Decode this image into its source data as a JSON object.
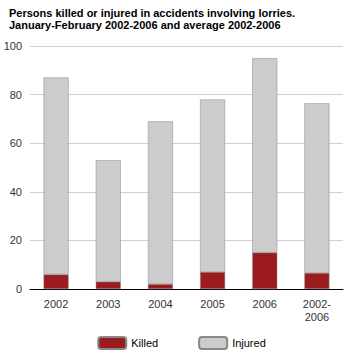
{
  "chart_data": {
    "type": "bar",
    "title": "Persons killed or injured in accidents involving lorries.",
    "subtitle": "January-February 2002-2006 and average 2002-2006",
    "categories": [
      "2002",
      "2003",
      "2004",
      "2005",
      "2006",
      "2002-2006"
    ],
    "series": [
      {
        "name": "Killed",
        "color": "#9b1b1e",
        "values": [
          6,
          3,
          2,
          7,
          15,
          6.6
        ]
      },
      {
        "name": "Injured",
        "color": "#cccccc",
        "values": [
          81,
          50,
          67,
          71,
          80,
          69.8
        ]
      }
    ],
    "stacked": true,
    "ylim": [
      0,
      100
    ],
    "yticks": [
      0,
      20,
      40,
      60,
      80,
      100
    ],
    "grid": true,
    "legend": "bottom"
  }
}
